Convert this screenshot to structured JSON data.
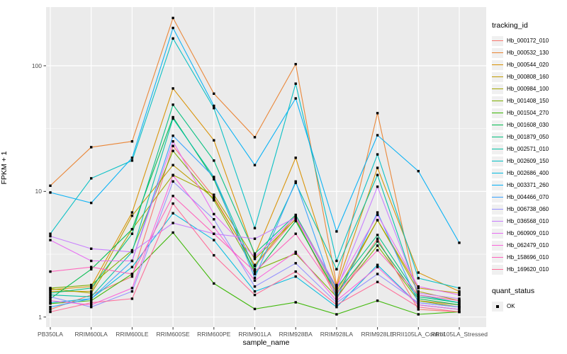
{
  "chart_data": {
    "type": "line",
    "title": "",
    "xlabel": "sample_name",
    "ylabel": "FPKM + 1",
    "yscale": "log10",
    "ylim": [
      1,
      292
    ],
    "y_major_ticks": [
      1,
      10,
      100
    ],
    "grid": true,
    "panel_bg": "#EBEBEB",
    "grid_color": "#FFFFFF",
    "point_color": "#000000",
    "legend": {
      "title": "tracking_id",
      "position": "right"
    },
    "point_legend": {
      "title": "quant_status",
      "items": [
        {
          "label": "OK"
        }
      ]
    },
    "categories": [
      "PB350LA",
      "RRIM600LA",
      "RRIM600LE",
      "RRIM600SE",
      "RRIM600PE",
      "RRIM901LA",
      "RRIM928BA",
      "RRIM928LA",
      "RRIM928LE",
      "RRII105LA_Control",
      "RRII105LA_Stressed"
    ],
    "series": [
      {
        "name": "Hb_000172_010",
        "color": "#F8766D",
        "values": [
          1.15,
          1.5,
          2.1,
          23,
          9.0,
          2.55,
          6.1,
          1.4,
          4.2,
          1.15,
          1.1
        ]
      },
      {
        "name": "Hb_000532_130",
        "color": "#EA8331",
        "values": [
          11.1,
          22.5,
          25,
          240,
          60,
          27,
          103,
          1.8,
          42,
          1.35,
          1.25
        ]
      },
      {
        "name": "Hb_000544_020",
        "color": "#D89000",
        "values": [
          1.65,
          1.75,
          6.8,
          66,
          25.5,
          3.1,
          18.5,
          1.75,
          15.4,
          2.26,
          1.6
        ]
      },
      {
        "name": "Hb_000808_160",
        "color": "#C09B00",
        "values": [
          1.6,
          1.6,
          6.4,
          16.2,
          8.8,
          2.6,
          6.4,
          1.6,
          5.9,
          1.7,
          1.55
        ]
      },
      {
        "name": "Hb_000984_100",
        "color": "#A3A500",
        "values": [
          1.68,
          1.55,
          5.0,
          13.5,
          9.4,
          2.9,
          6.0,
          1.5,
          5.9,
          1.6,
          1.35
        ]
      },
      {
        "name": "Hb_001408_150",
        "color": "#7CAE00",
        "values": [
          1.7,
          1.8,
          3.4,
          21,
          8.5,
          2.35,
          3.2,
          1.45,
          3.7,
          1.35,
          1.2
        ]
      },
      {
        "name": "Hb_001504_270",
        "color": "#39B600",
        "values": [
          1.28,
          1.35,
          2.2,
          4.7,
          1.85,
          1.16,
          1.31,
          1.05,
          1.35,
          1.05,
          1.1
        ]
      },
      {
        "name": "Hb_001608_030",
        "color": "#00BB4E",
        "values": [
          1.4,
          2.4,
          5.0,
          39,
          12.5,
          2.2,
          5.8,
          1.55,
          4.0,
          1.4,
          1.25
        ]
      },
      {
        "name": "Hb_001879_050",
        "color": "#00BF7D",
        "values": [
          1.55,
          1.7,
          4.6,
          49,
          17.6,
          3.2,
          6.5,
          1.7,
          4.5,
          1.45,
          1.3
        ]
      },
      {
        "name": "Hb_002571_010",
        "color": "#00C1A3",
        "values": [
          1.5,
          1.45,
          3.3,
          38,
          13,
          2.4,
          11.7,
          2.4,
          13.5,
          1.5,
          1.3
        ]
      },
      {
        "name": "Hb_002609_150",
        "color": "#00BFC4",
        "values": [
          4.6,
          12.7,
          17.6,
          165,
          46,
          5.1,
          72,
          2.8,
          19.7,
          2.04,
          1.7
        ]
      },
      {
        "name": "Hb_002686_400",
        "color": "#00BAE0",
        "values": [
          1.3,
          1.4,
          2.5,
          6.7,
          4.1,
          1.6,
          2.1,
          1.2,
          2.6,
          1.25,
          1.15
        ]
      },
      {
        "name": "Hb_003371_260",
        "color": "#00B0F6",
        "values": [
          9.8,
          8.1,
          18.5,
          200,
          48,
          16.2,
          55,
          4.8,
          28,
          14.5,
          3.9
        ]
      },
      {
        "name": "Hb_004466_070",
        "color": "#35A2FF",
        "values": [
          1.2,
          1.4,
          2.8,
          27.7,
          13,
          2.05,
          12,
          1.4,
          6.8,
          1.3,
          1.2
        ]
      },
      {
        "name": "Hb_006738_060",
        "color": "#9590FF",
        "values": [
          1.45,
          1.2,
          1.6,
          12,
          6.0,
          1.75,
          2.68,
          1.3,
          2.2,
          1.3,
          1.2
        ]
      },
      {
        "name": "Hb_036568_010",
        "color": "#C77CFF",
        "values": [
          4.4,
          3.5,
          3.3,
          5.6,
          4.6,
          4.2,
          6.2,
          1.65,
          10.9,
          1.55,
          1.4
        ]
      },
      {
        "name": "Hb_060909_010",
        "color": "#E76BF3",
        "values": [
          4.1,
          2.8,
          2.8,
          25,
          6.6,
          3.0,
          6.3,
          1.75,
          6.5,
          1.75,
          1.5
        ]
      },
      {
        "name": "Hb_062479_010",
        "color": "#FA62DB",
        "values": [
          1.35,
          1.25,
          1.7,
          13.4,
          5.2,
          1.95,
          3.3,
          1.35,
          2.5,
          1.25,
          1.15
        ]
      },
      {
        "name": "Hb_158696_010",
        "color": "#FF62BC",
        "values": [
          2.3,
          2.5,
          2.2,
          9.2,
          4.6,
          2.3,
          4.6,
          1.55,
          3.4,
          1.5,
          1.35
        ]
      },
      {
        "name": "Hb_169620_010",
        "color": "#FF6A98",
        "values": [
          1.1,
          1.3,
          1.4,
          8.0,
          3.1,
          1.5,
          2.3,
          1.25,
          1.9,
          1.2,
          1.1
        ]
      }
    ]
  }
}
